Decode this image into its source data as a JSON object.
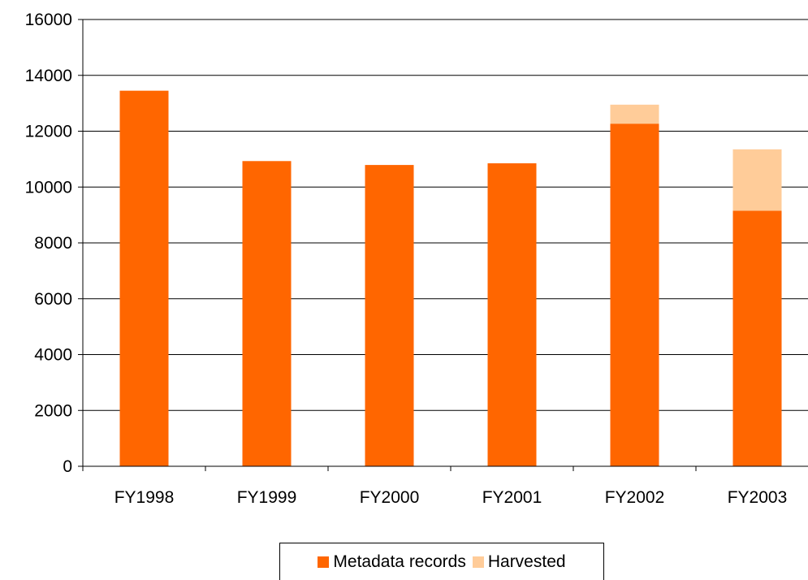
{
  "chart_data": {
    "type": "bar",
    "stacked": true,
    "categories": [
      "FY1998",
      "FY1999",
      "FY2000",
      "FY2001",
      "FY2002",
      "FY2003"
    ],
    "series": [
      {
        "name": "Metadata records",
        "values": [
          13450,
          10930,
          10790,
          10850,
          12270,
          9150
        ],
        "color": "#FF6600"
      },
      {
        "name": "Harvested",
        "values": [
          0,
          0,
          0,
          0,
          680,
          2200
        ],
        "color": "#FFCC99"
      }
    ],
    "ylim": [
      0,
      16000
    ],
    "yticks": [
      0,
      2000,
      4000,
      6000,
      8000,
      10000,
      12000,
      14000,
      16000
    ],
    "grid": true,
    "legend": "bottom",
    "title": "",
    "xlabel": "",
    "ylabel": ""
  }
}
